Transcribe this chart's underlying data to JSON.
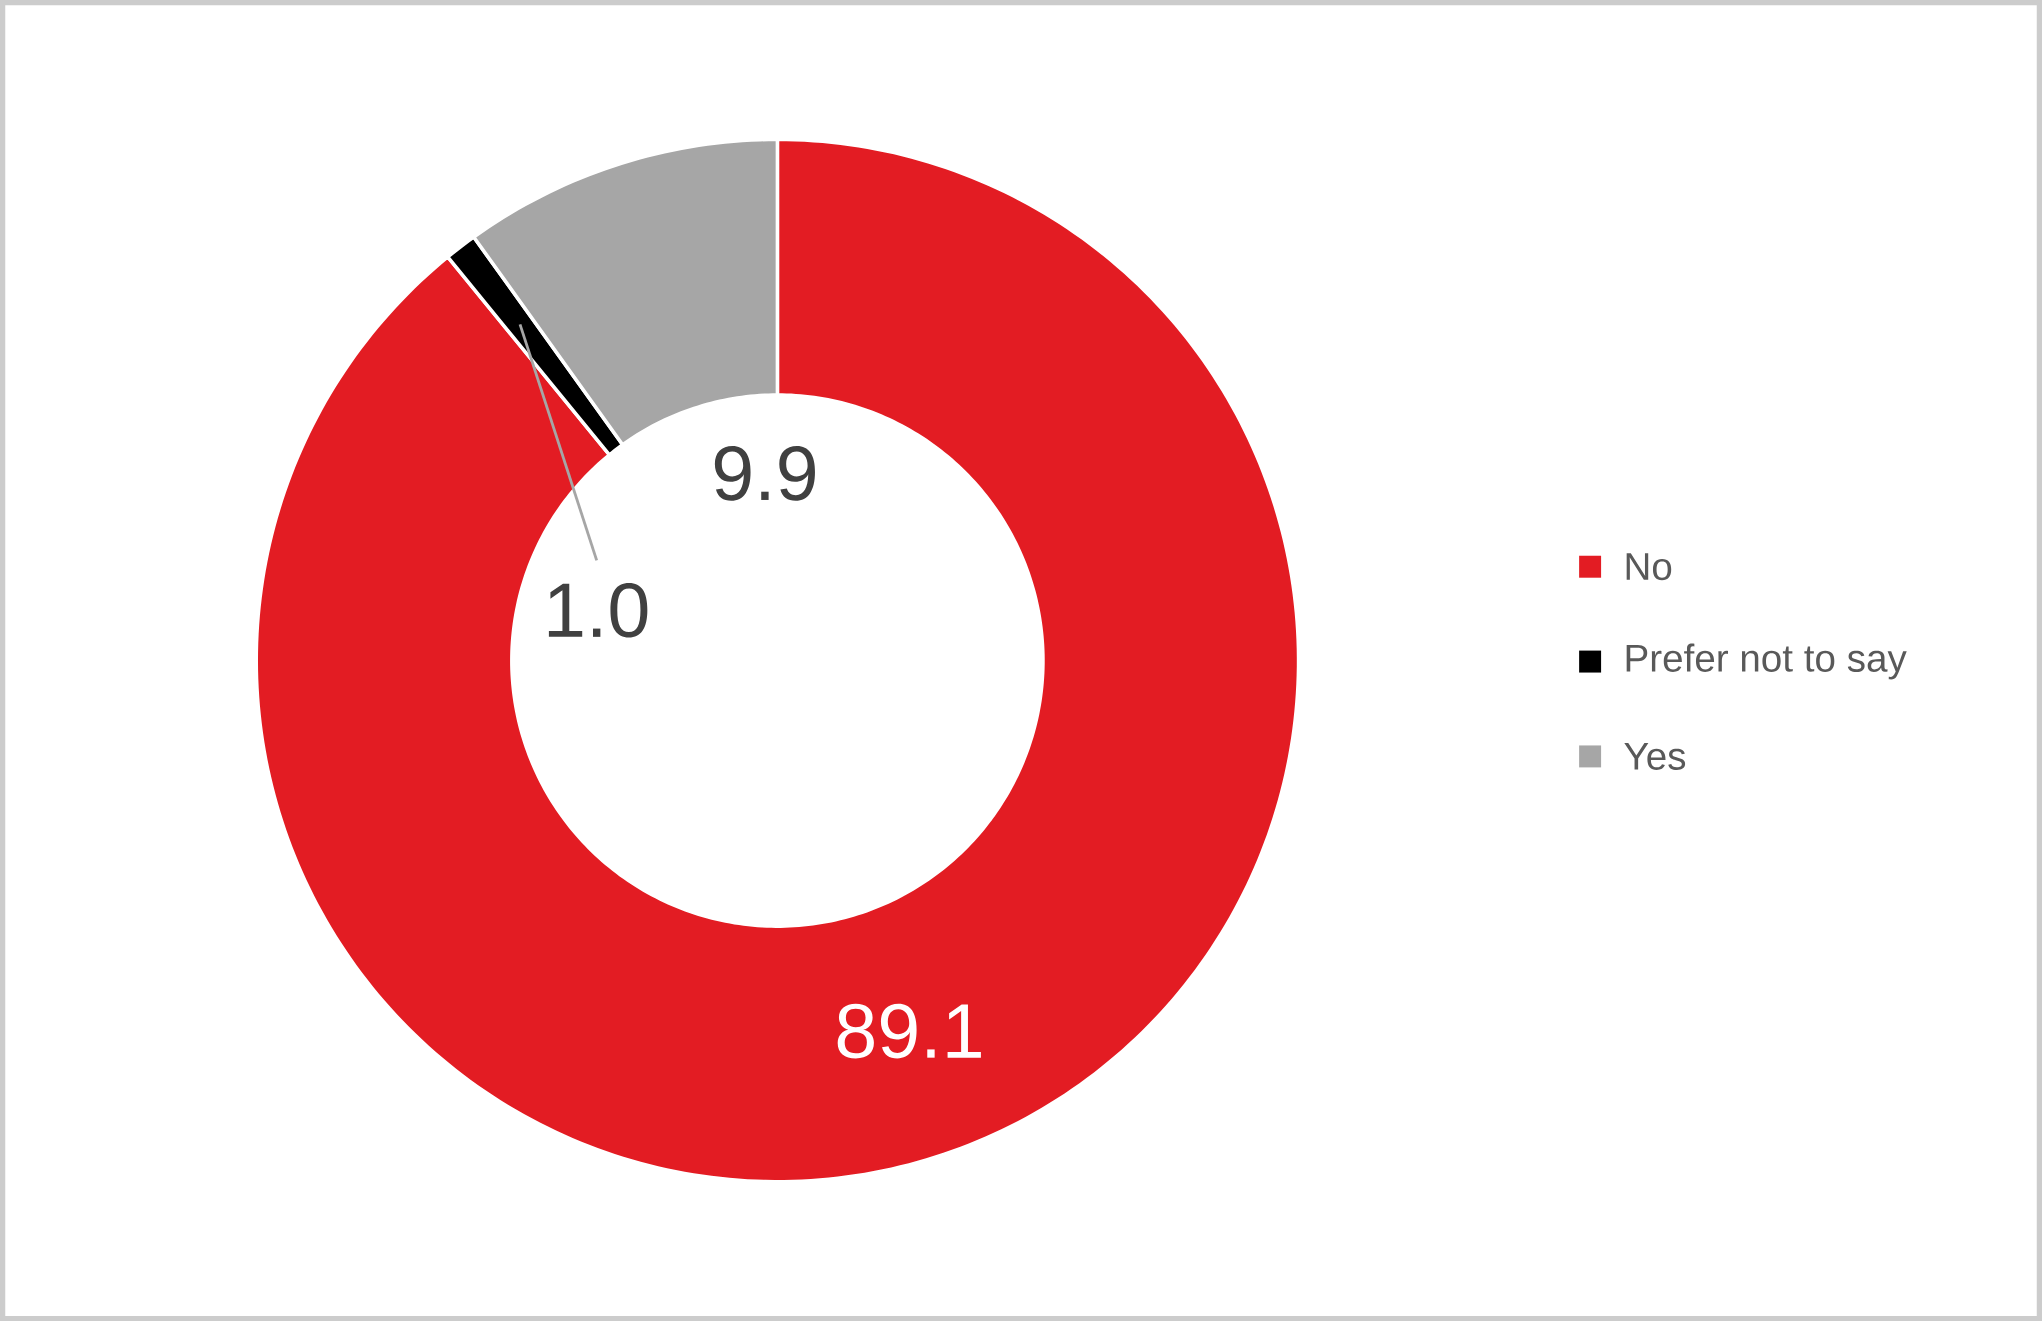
{
  "chart_data": {
    "type": "donut",
    "categories": [
      "No",
      "Prefer not to say",
      "Yes"
    ],
    "values": [
      89.1,
      1.0,
      9.9
    ],
    "colors": [
      "#e31c23",
      "#000000",
      "#a6a6a6"
    ],
    "value_labels": [
      "89.1",
      "1.0",
      "9.9"
    ],
    "legend": "right"
  }
}
